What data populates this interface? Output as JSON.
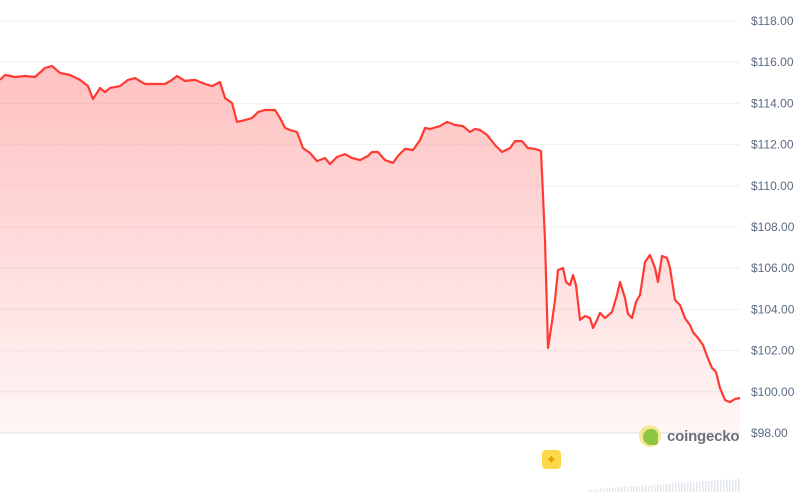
{
  "chart_data": {
    "type": "area",
    "title": "",
    "xlabel": "",
    "ylabel": "",
    "ylim": [
      97,
      119
    ],
    "yticks": [
      "$118.00",
      "$116.00",
      "$114.00",
      "$112.00",
      "$110.00",
      "$108.00",
      "$106.00",
      "$104.00",
      "$102.00",
      "$100.00",
      "$98.00"
    ],
    "ytick_values": [
      118,
      116,
      114,
      112,
      110,
      108,
      106,
      104,
      102,
      100,
      98
    ],
    "grid": true,
    "line_color": "#ff3a33",
    "fill_color": "#ff6b6b",
    "series": [
      {
        "x": [
          0,
          1,
          3,
          5,
          7,
          9,
          10.4,
          12,
          14,
          16,
          17.6,
          18.6,
          20,
          21,
          22,
          24,
          25.6,
          27,
          29,
          31,
          33,
          34.4,
          35.4,
          37,
          39,
          41,
          42.4,
          44,
          45,
          46.4,
          47.4,
          49,
          50.4,
          51.6,
          53,
          55,
          56,
          57,
          58,
          59.4,
          60.6,
          62,
          63.4,
          65,
          66,
          67.4,
          69,
          70.4,
          72,
          73.6,
          74.4,
          75.6,
          77,
          78.6,
          79.6,
          81,
          82.6,
          84,
          85,
          86,
          88,
          89.4,
          91,
          92.6,
          94,
          95,
          96,
          97.4,
          99,
          100.4,
          102,
          103,
          104.4,
          105.6,
          107,
          108.2,
          109,
          109.6,
          110.4,
          111,
          111.6,
          112.6,
          113.2,
          114,
          114.6,
          115.2,
          116,
          117,
          118,
          118.6,
          119.4,
          120,
          121,
          122.4,
          123.4,
          124,
          125,
          125.6,
          126.4,
          127.2,
          128,
          129,
          130,
          131,
          131.6,
          132.4,
          133.4,
          134,
          135,
          136,
          137,
          138,
          138.6,
          139.6,
          140.6,
          141.4,
          142.4,
          143.2,
          144,
          145,
          146,
          147,
          148
        ],
        "values": [
          115.14,
          115.38,
          115.28,
          115.33,
          115.28,
          115.72,
          115.82,
          115.48,
          115.38,
          115.14,
          114.84,
          114.21,
          114.75,
          114.55,
          114.75,
          114.84,
          115.14,
          115.23,
          114.94,
          114.94,
          114.94,
          115.14,
          115.33,
          115.09,
          115.14,
          114.94,
          114.84,
          115.04,
          114.26,
          114.02,
          113.1,
          113.19,
          113.29,
          113.58,
          113.68,
          113.68,
          113.29,
          112.81,
          112.71,
          112.61,
          111.83,
          111.59,
          111.2,
          111.35,
          111.06,
          111.4,
          111.54,
          111.35,
          111.25,
          111.45,
          111.64,
          111.64,
          111.25,
          111.11,
          111.45,
          111.79,
          111.74,
          112.22,
          112.81,
          112.76,
          112.9,
          113.1,
          112.95,
          112.9,
          112.61,
          112.76,
          112.71,
          112.47,
          111.98,
          111.64,
          111.83,
          112.17,
          112.17,
          111.83,
          111.79,
          111.69,
          107.37,
          102.13,
          103.39,
          104.46,
          105.91,
          106.01,
          105.33,
          105.18,
          105.67,
          105.18,
          103.49,
          103.68,
          103.58,
          103.1,
          103.49,
          103.83,
          103.58,
          103.87,
          104.7,
          105.33,
          104.55,
          103.78,
          103.58,
          104.36,
          104.7,
          106.3,
          106.64,
          106.01,
          105.33,
          106.59,
          106.5,
          106.01,
          104.46,
          104.21,
          103.58,
          103.24,
          102.9,
          102.61,
          102.27,
          101.74,
          101.16,
          100.96,
          100.18,
          99.6,
          99.5,
          99.65,
          99.7
        ]
      }
    ],
    "volume_bars": true
  },
  "watermark": {
    "text": "coingecko"
  },
  "icons": {
    "gem": "sparkle-gem-icon",
    "logo": "coingecko-logo-icon"
  }
}
